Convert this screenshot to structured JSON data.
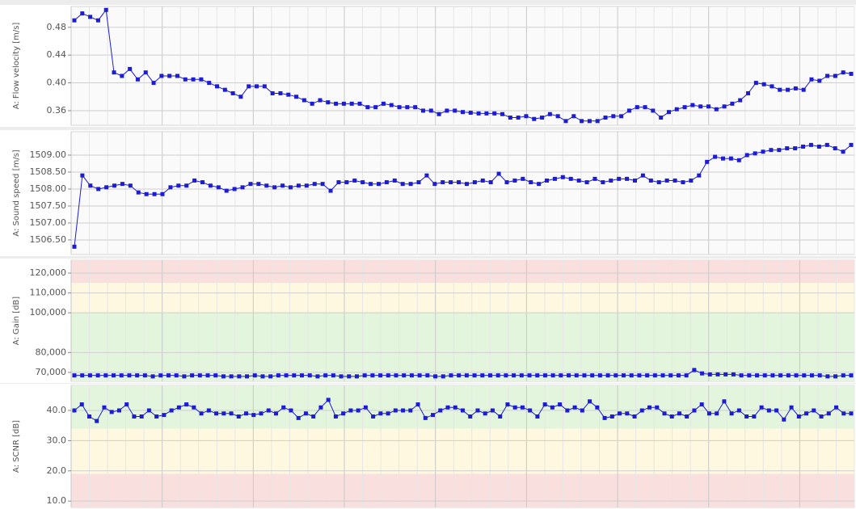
{
  "chart_data": [
    {
      "type": "line",
      "ylabel": "A: Flow velocity [m/s]",
      "color": "#1c1cd4",
      "grid": true,
      "ylim": [
        0.339,
        0.51
      ],
      "yticks": [
        0.36,
        {
          "value": 0.4,
          "label": "0.40"
        },
        0.44,
        0.48
      ],
      "values": [
        0.49,
        0.5,
        0.495,
        0.49,
        0.505,
        0.415,
        0.41,
        0.42,
        0.405,
        0.415,
        0.4,
        0.41,
        0.41,
        0.41,
        0.405,
        0.405,
        0.405,
        0.4,
        0.395,
        0.39,
        0.385,
        0.38,
        0.395,
        0.395,
        0.395,
        0.385,
        0.385,
        0.383,
        0.38,
        0.375,
        0.37,
        0.375,
        0.372,
        0.37,
        0.37,
        0.37,
        0.37,
        0.365,
        0.365,
        0.37,
        0.368,
        0.365,
        0.365,
        0.365,
        0.36,
        0.36,
        0.355,
        0.36,
        0.36,
        0.358,
        0.357,
        0.356,
        0.356,
        0.356,
        0.355,
        0.35,
        0.35,
        0.352,
        0.348,
        0.35,
        0.355,
        0.352,
        0.345,
        0.352,
        0.345,
        0.345,
        0.345,
        0.35,
        0.352,
        0.352,
        0.36,
        0.365,
        0.365,
        0.36,
        0.35,
        0.358,
        0.362,
        0.365,
        0.368,
        0.366,
        0.366,
        0.362,
        0.366,
        0.37,
        0.375,
        0.385,
        0.4,
        0.398,
        0.395,
        0.39,
        0.39,
        0.392,
        0.39,
        0.405,
        0.403,
        0.41,
        0.41,
        0.415,
        0.413
      ]
    },
    {
      "type": "line",
      "ylabel": "A: Sound speed [m/s]",
      "color": "#1c1cd4",
      "grid": true,
      "ylim": [
        1506.07,
        1509.69
      ],
      "yticks": [
        {
          "value": 1506.5,
          "label": "1506.50"
        },
        {
          "value": 1507,
          "label": "1507.00"
        },
        {
          "value": 1507.5,
          "label": "1507.50"
        },
        {
          "value": 1508,
          "label": "1508.00"
        },
        {
          "value": 1508.5,
          "label": "1508.50"
        },
        {
          "value": 1509,
          "label": "1509.00"
        }
      ],
      "values": [
        1506.3,
        1508.4,
        1508.1,
        1508.0,
        1508.05,
        1508.1,
        1508.15,
        1508.1,
        1507.9,
        1507.85,
        1507.85,
        1507.85,
        1508.05,
        1508.1,
        1508.1,
        1508.25,
        1508.2,
        1508.1,
        1508.05,
        1507.95,
        1508.0,
        1508.05,
        1508.15,
        1508.15,
        1508.1,
        1508.05,
        1508.1,
        1508.05,
        1508.1,
        1508.1,
        1508.15,
        1508.15,
        1507.95,
        1508.2,
        1508.2,
        1508.25,
        1508.2,
        1508.15,
        1508.15,
        1508.2,
        1508.25,
        1508.15,
        1508.15,
        1508.2,
        1508.4,
        1508.15,
        1508.2,
        1508.2,
        1508.2,
        1508.15,
        1508.2,
        1508.25,
        1508.2,
        1508.45,
        1508.2,
        1508.25,
        1508.3,
        1508.2,
        1508.15,
        1508.25,
        1508.3,
        1508.35,
        1508.3,
        1508.25,
        1508.2,
        1508.3,
        1508.2,
        1508.25,
        1508.3,
        1508.3,
        1508.25,
        1508.4,
        1508.25,
        1508.2,
        1508.25,
        1508.25,
        1508.2,
        1508.25,
        1508.4,
        1508.8,
        1508.95,
        1508.9,
        1508.9,
        1508.85,
        1509.0,
        1509.05,
        1509.1,
        1509.15,
        1509.15,
        1509.2,
        1509.2,
        1509.25,
        1509.3,
        1509.25,
        1509.3,
        1509.2,
        1509.1,
        1509.3
      ]
    },
    {
      "type": "line",
      "ylabel": "A: Gain [dB]",
      "color": "#1c1cd4",
      "grid": true,
      "ylim": [
        65.5,
        126.5
      ],
      "yticks": [
        {
          "value": 70,
          "label": "70,000"
        },
        {
          "value": 80,
          "label": "80,000"
        },
        {
          "value": 100,
          "label": "100,000"
        },
        {
          "value": 110,
          "label": "110,000"
        },
        {
          "value": 120,
          "label": "120,000"
        }
      ],
      "bands": [
        {
          "from": 115,
          "to": 126.5,
          "color": "#fadfdf"
        },
        {
          "from": 100,
          "to": 115,
          "color": "#fdf8df"
        },
        {
          "from": 65.5,
          "to": 100,
          "color": "#e3f5dd"
        }
      ],
      "values": [
        68.5,
        68.5,
        68.5,
        68.5,
        68.5,
        68.5,
        68.5,
        68.5,
        68.5,
        68.5,
        68.0,
        68.5,
        68.5,
        68.5,
        68.0,
        68.5,
        68.5,
        68.5,
        68.5,
        68.0,
        68.0,
        68.0,
        68.0,
        68.5,
        68.0,
        68.0,
        68.5,
        68.5,
        68.5,
        68.5,
        68.5,
        68.0,
        68.5,
        68.5,
        68.0,
        68.0,
        68.0,
        68.5,
        68.5,
        68.5,
        68.5,
        68.5,
        68.5,
        68.5,
        68.5,
        68.5,
        68.0,
        68.0,
        68.5,
        68.5,
        68.5,
        68.5,
        68.5,
        68.5,
        68.5,
        68.5,
        68.5,
        68.5,
        68.5,
        68.5,
        68.5,
        68.5,
        68.5,
        68.5,
        68.5,
        68.5,
        68.5,
        68.5,
        68.5,
        68.5,
        68.5,
        68.5,
        68.5,
        68.5,
        68.5,
        68.5,
        68.5,
        68.5,
        68.5,
        71.2,
        69.5,
        69.0,
        69.0,
        69.0,
        69.0,
        68.5,
        68.5,
        68.5,
        68.5,
        68.5,
        68.5,
        68.5,
        68.5,
        68.5,
        68.5,
        68.5,
        68.0,
        68.0,
        68.5,
        68.5
      ]
    },
    {
      "type": "line",
      "ylabel": "A: SCNR [dB]",
      "color": "#1c1cd4",
      "grid": true,
      "ylim": [
        7.9,
        48.3
      ],
      "yticks": [
        {
          "value": 10,
          "label": "10.0"
        },
        {
          "value": 20,
          "label": "20.0"
        },
        {
          "value": 30,
          "label": "30.0"
        },
        {
          "value": 40,
          "label": "40.0"
        }
      ],
      "bands": [
        {
          "from": 34,
          "to": 48.3,
          "color": "#e3f5dd"
        },
        {
          "from": 19,
          "to": 34,
          "color": "#fdf8df"
        },
        {
          "from": 7.9,
          "to": 19,
          "color": "#fadfdf"
        }
      ],
      "values": [
        40,
        42,
        38,
        36.5,
        41,
        39.5,
        40,
        42,
        38,
        38,
        40,
        38,
        38.5,
        40,
        41,
        42,
        41,
        39,
        40,
        39,
        39,
        39,
        38,
        39,
        38.5,
        39,
        40,
        39,
        41,
        40,
        37.5,
        39,
        38,
        41,
        43.5,
        38,
        39,
        40,
        40,
        41,
        38,
        39,
        39,
        40,
        40,
        40,
        42,
        37.5,
        38.5,
        40,
        41,
        41,
        40,
        38,
        40,
        39,
        40,
        38,
        42,
        41,
        41,
        40,
        38,
        42,
        41,
        42,
        40,
        41,
        40,
        43,
        41,
        37.5,
        38,
        39,
        39,
        38,
        40,
        41,
        41,
        39,
        38,
        39,
        38,
        40,
        42,
        39,
        39,
        43,
        39,
        40,
        38,
        38,
        41,
        40,
        40,
        37,
        41,
        38,
        39,
        40,
        38,
        39,
        41,
        39,
        39
      ]
    }
  ]
}
